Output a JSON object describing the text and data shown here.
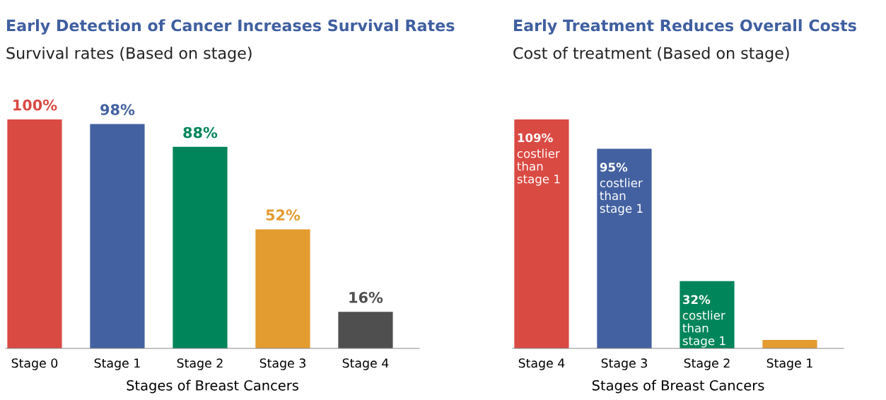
{
  "chart_data": [
    {
      "type": "bar",
      "title": "Early Detection of Cancer Increases Survival Rates",
      "subtitle": "Survival rates (Based on stage)",
      "xlabel": "Stages of Breast Cancers",
      "categories": [
        "Stage 0",
        "Stage 1",
        "Stage 2",
        "Stage 3",
        "Stage 4"
      ],
      "values": [
        100,
        98,
        88,
        52,
        16
      ],
      "colors": [
        "#d94a43",
        "#4361a0",
        "#00855a",
        "#e39c30",
        "#4f4f4f"
      ],
      "value_labels": [
        "100%",
        "98%",
        "88%",
        "52%",
        "16%"
      ],
      "tick_labels": "x",
      "grid": false,
      "legend": false
    },
    {
      "type": "bar",
      "title": "Early Treatment Reduces Overall Costs",
      "subtitle": "Cost of treatment (Based on stage)",
      "xlabel": "Stages of Breast Cancers",
      "categories": [
        "Stage 4",
        "Stage 3",
        "Stage 2",
        "Stage 1"
      ],
      "values": [
        109,
        95,
        32,
        4
      ],
      "colors": [
        "#d94a43",
        "#4361a0",
        "#00855a",
        "#e39c30"
      ],
      "value_labels": [
        "109%\ncostlier\nthan\nstage 1",
        "95%\ncostlier\nthan\nstage 1",
        "32%\ncostlier\nthan\nstage 1",
        null
      ],
      "tick_labels": "x",
      "grid": false,
      "legend": false
    }
  ]
}
